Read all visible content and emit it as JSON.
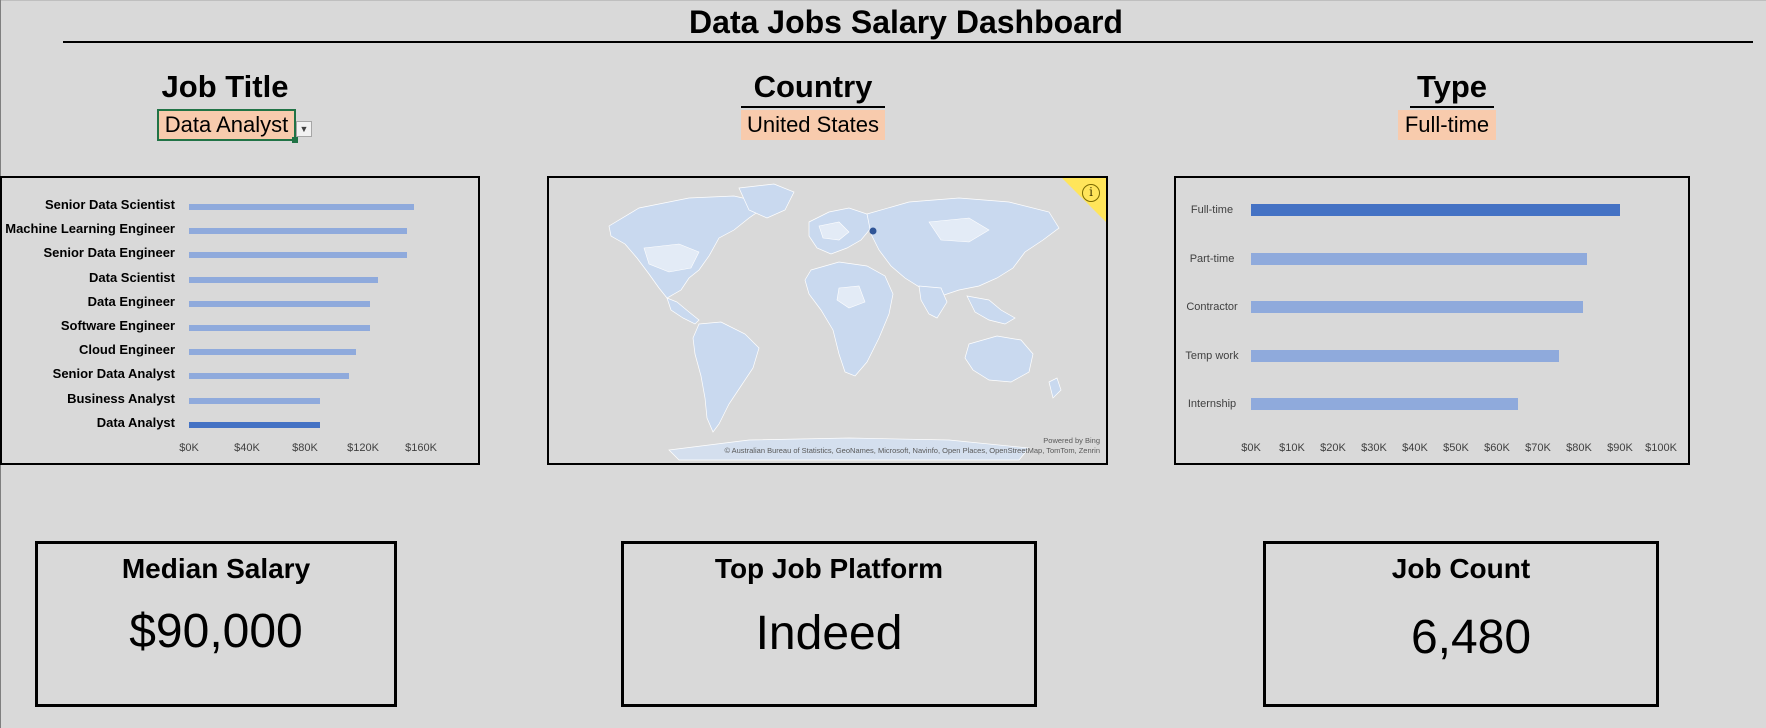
{
  "dashboard": {
    "title": "Data Jobs Salary Dashboard"
  },
  "filters": {
    "job_title": {
      "label": "Job Title",
      "value": "Data Analyst"
    },
    "country": {
      "label": "Country",
      "value": "United States"
    },
    "type": {
      "label": "Type",
      "value": "Full-time"
    }
  },
  "colors": {
    "highlight_bar": "#4472c4",
    "other_bar": "#8faadc",
    "filter_fill": "#f8cbad",
    "background": "#d9d9d9",
    "selection_border": "#217346"
  },
  "chart_data": [
    {
      "type": "bar",
      "orientation": "horizontal",
      "categories": [
        "Senior Data Scientist",
        "Machine Learning Engineer",
        "Senior Data Engineer",
        "Data Scientist",
        "Data Engineer",
        "Software Engineer",
        "Cloud Engineer",
        "Senior Data Analyst",
        "Business Analyst",
        "Data Analyst"
      ],
      "values": [
        155000,
        150000,
        150000,
        130000,
        125000,
        125000,
        115000,
        110000,
        90000,
        90000
      ],
      "highlight": "Data Analyst",
      "xlim": [
        0,
        160000
      ],
      "x_ticks": [
        "$0K",
        "$40K",
        "$80K",
        "$120K",
        "$160K"
      ],
      "grid": false
    },
    {
      "type": "map",
      "highlight_region": "United States",
      "attribution": "© Australian Bureau of Statistics, GeoNames, Microsoft, Navinfo, Open Places, OpenStreetMap, TomTom, Zenrin",
      "powered_by": "Powered by Bing",
      "info_icon": "info-icon"
    },
    {
      "type": "bar",
      "orientation": "horizontal",
      "categories": [
        "Full-time",
        "Part-time",
        "Contractor",
        "Temp work",
        "Internship"
      ],
      "values": [
        90000,
        82000,
        81000,
        75000,
        65000
      ],
      "highlight": "Full-time",
      "xlim": [
        0,
        100000
      ],
      "x_ticks": [
        "$0K",
        "$10K",
        "$20K",
        "$30K",
        "$40K",
        "$50K",
        "$60K",
        "$70K",
        "$80K",
        "$90K",
        "$100K"
      ],
      "grid": false
    }
  ],
  "kpis": {
    "median_salary": {
      "label": "Median Salary",
      "value": "$90,000"
    },
    "top_platform": {
      "label": "Top Job Platform",
      "value": "Indeed"
    },
    "job_count": {
      "label": "Job Count",
      "value": "6,480"
    }
  }
}
